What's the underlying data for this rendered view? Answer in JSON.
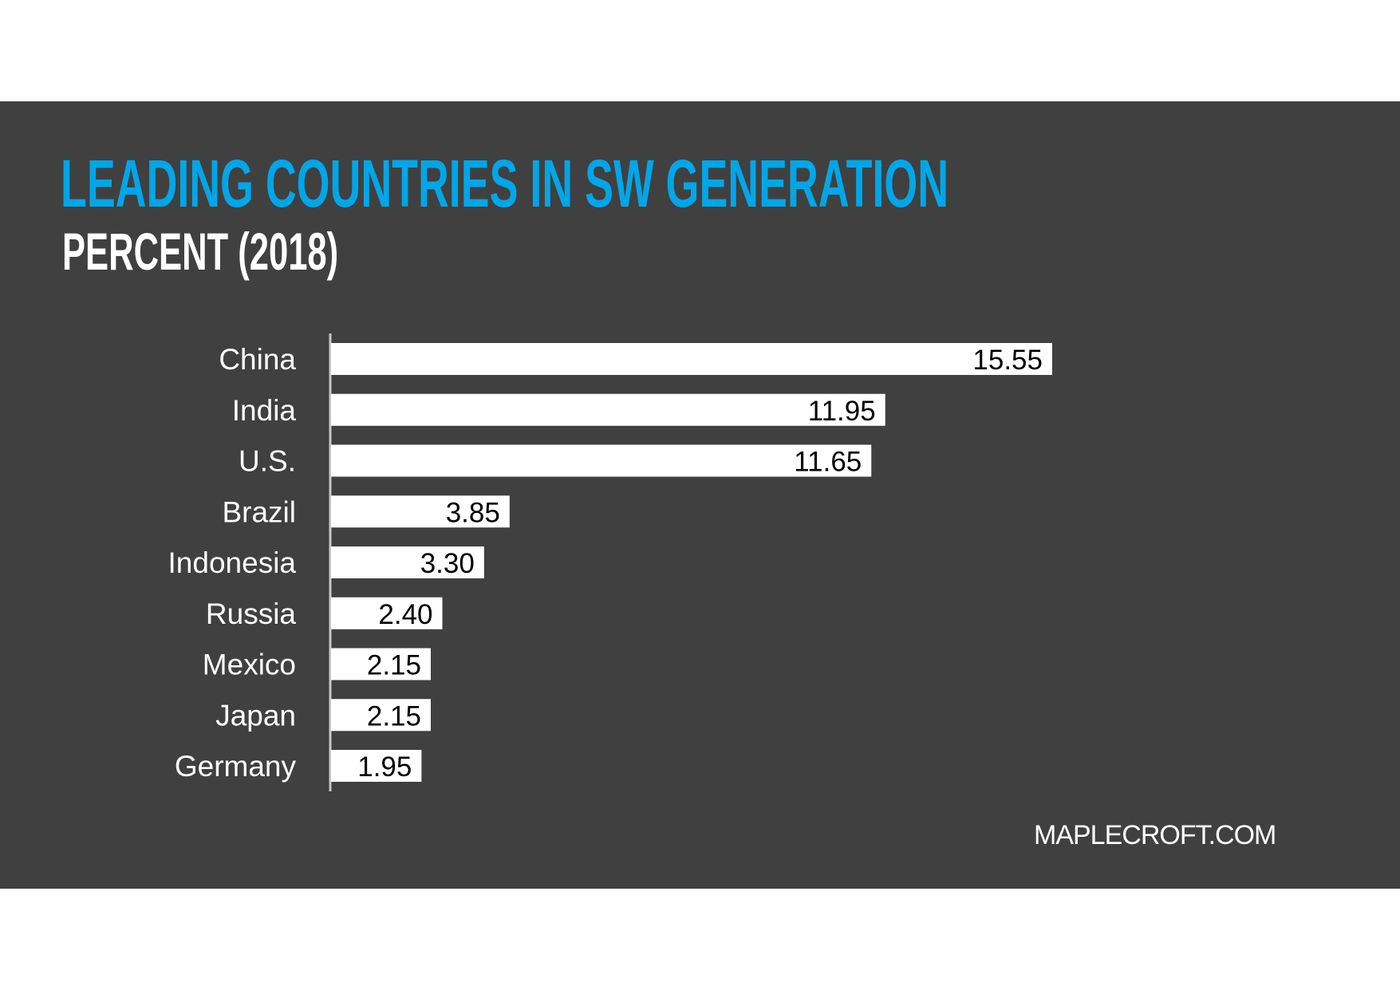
{
  "title": "LEADING COUNTRIES IN SW GENERATION",
  "subtitle": "PERCENT (2018)",
  "source": "MAPLECROFT.COM",
  "colors": {
    "background_panel": "#404040",
    "title": "#00a6e8",
    "bar": "#ffffff",
    "text": "#ffffff",
    "value_text": "#000000"
  },
  "chart_data": {
    "type": "bar",
    "orientation": "horizontal",
    "categories": [
      "China",
      "India",
      "U.S.",
      "Brazil",
      "Indonesia",
      "Russia",
      "Mexico",
      "Japan",
      "Germany"
    ],
    "values": [
      15.55,
      11.95,
      11.65,
      3.85,
      3.3,
      2.4,
      2.15,
      2.15,
      1.95
    ],
    "value_labels": [
      "15.55",
      "11.95",
      "11.65",
      "3.85",
      "3.30",
      "2.40",
      "2.15",
      "2.15",
      "1.95"
    ],
    "title": "LEADING COUNTRIES IN SW GENERATION",
    "subtitle": "PERCENT (2018)",
    "xlabel": "",
    "ylabel": "",
    "xlim": [
      0,
      15.55
    ],
    "grid": false,
    "legend": "none"
  }
}
